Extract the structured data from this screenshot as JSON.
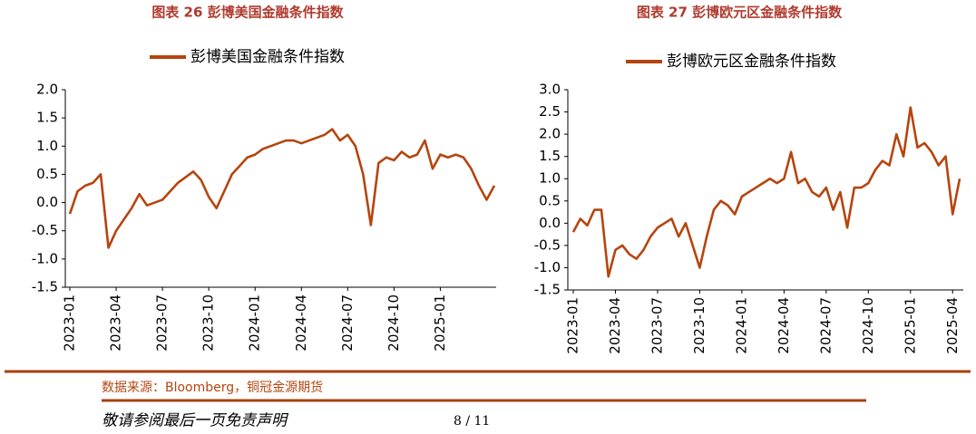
{
  "chart_data": [
    {
      "type": "line",
      "title": "图表 26 彭博美国金融条件指数",
      "categories": [
        "2023-01",
        null,
        null,
        null,
        null,
        null,
        "2023-04",
        null,
        null,
        null,
        null,
        null,
        "2023-07",
        null,
        null,
        null,
        null,
        null,
        "2023-10",
        null,
        null,
        null,
        null,
        null,
        "2024-01",
        null,
        null,
        null,
        null,
        null,
        "2024-04",
        null,
        null,
        null,
        null,
        null,
        "2024-07",
        null,
        null,
        null,
        null,
        null,
        "2024-10",
        null,
        null,
        null,
        null,
        null,
        "2025-01",
        null,
        null,
        null,
        null,
        null,
        null,
        null
      ],
      "series": [
        {
          "name": "彭博美国金融条件指数",
          "color": "#b5450f",
          "values": [
            -0.2,
            0.2,
            0.3,
            0.35,
            0.5,
            -0.8,
            -0.5,
            -0.3,
            -0.1,
            0.15,
            -0.05,
            0.0,
            0.05,
            0.2,
            0.35,
            0.45,
            0.55,
            0.4,
            0.1,
            -0.1,
            0.2,
            0.5,
            0.65,
            0.8,
            0.85,
            0.95,
            1.0,
            1.05,
            1.1,
            1.1,
            1.05,
            1.1,
            1.15,
            1.2,
            1.3,
            1.1,
            1.2,
            1.0,
            0.5,
            -0.4,
            0.7,
            0.8,
            0.75,
            0.9,
            0.8,
            0.85,
            1.1,
            0.6,
            0.85,
            0.8,
            0.85,
            0.8,
            0.6,
            0.3,
            0.05,
            0.3
          ]
        }
      ],
      "ylim": [
        -1.5,
        2
      ],
      "yticks": [
        -1.5,
        {
          "value": -1,
          "label": "-1.0"
        },
        -0.5,
        {
          "value": 0,
          "label": "0.0"
        },
        0.5,
        {
          "value": 1,
          "label": "1.0"
        },
        1.5,
        {
          "value": 2,
          "label": "2.0"
        }
      ]
    },
    {
      "type": "line",
      "title": "图表 27 彭博欧元区金融条件指数",
      "categories": [
        "2023-01",
        null,
        null,
        null,
        null,
        null,
        "2023-04",
        null,
        null,
        null,
        null,
        null,
        "2023-07",
        null,
        null,
        null,
        null,
        null,
        "2023-10",
        null,
        null,
        null,
        null,
        null,
        "2024-01",
        null,
        null,
        null,
        null,
        null,
        "2024-04",
        null,
        null,
        null,
        null,
        null,
        "2024-07",
        null,
        null,
        null,
        null,
        null,
        "2024-10",
        null,
        null,
        null,
        null,
        null,
        "2025-01",
        null,
        null,
        null,
        null,
        null,
        "2025-04",
        null
      ],
      "series": [
        {
          "name": "彭博欧元区金融条件指数",
          "color": "#b5450f",
          "values": [
            -0.2,
            0.1,
            -0.05,
            0.3,
            0.3,
            -1.2,
            -0.6,
            -0.5,
            -0.7,
            -0.8,
            -0.6,
            -0.3,
            -0.1,
            0.0,
            0.1,
            -0.3,
            0.0,
            -0.5,
            -1.0,
            -0.3,
            0.3,
            0.5,
            0.4,
            0.2,
            0.6,
            0.7,
            0.8,
            0.9,
            1.0,
            0.9,
            1.0,
            1.6,
            0.9,
            1.0,
            0.7,
            0.6,
            0.8,
            0.3,
            0.7,
            -0.1,
            0.8,
            0.8,
            0.9,
            1.2,
            1.4,
            1.3,
            2.0,
            1.5,
            2.6,
            1.7,
            1.8,
            1.6,
            1.3,
            1.5,
            0.2,
            1.0
          ]
        }
      ],
      "ylim": [
        -1.5,
        3
      ],
      "yticks": [
        -1.5,
        {
          "value": -1,
          "label": "-1.0"
        },
        -0.5,
        {
          "value": 0,
          "label": "0.0"
        },
        0.5,
        {
          "value": 1,
          "label": "1.0"
        },
        1.5,
        {
          "value": 2,
          "label": "2.0"
        },
        2.5,
        {
          "value": 3,
          "label": "3.0"
        }
      ]
    }
  ],
  "source": "数据来源：Bloomberg，铜冠金源期货",
  "disclaimer": "敬请参阅最后一页免责声明",
  "page": "8 / 11"
}
